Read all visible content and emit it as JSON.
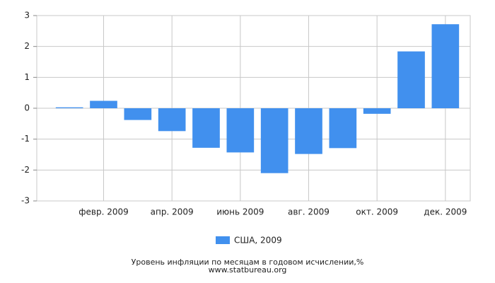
{
  "chart_data": {
    "type": "bar",
    "categories": [
      null,
      "февр. 2009",
      null,
      "апр. 2009",
      null,
      "июнь 2009",
      null,
      "авг. 2009",
      null,
      "окт. 2009",
      null,
      "дек. 2009"
    ],
    "series": [
      {
        "name": "США, 2009",
        "color": "#4190ee",
        "values": [
          0.03,
          0.24,
          -0.38,
          -0.74,
          -1.28,
          -1.43,
          -2.1,
          -1.48,
          -1.29,
          -0.18,
          1.84,
          2.72
        ]
      }
    ],
    "ylim": [
      -3,
      3
    ],
    "yticks": [
      -3,
      -2,
      -1,
      0,
      1,
      2,
      3
    ],
    "grid": true,
    "caption": "Уровень инфляции по месяцам в годовом исчислении,%",
    "source": "www.statbureau.org"
  }
}
